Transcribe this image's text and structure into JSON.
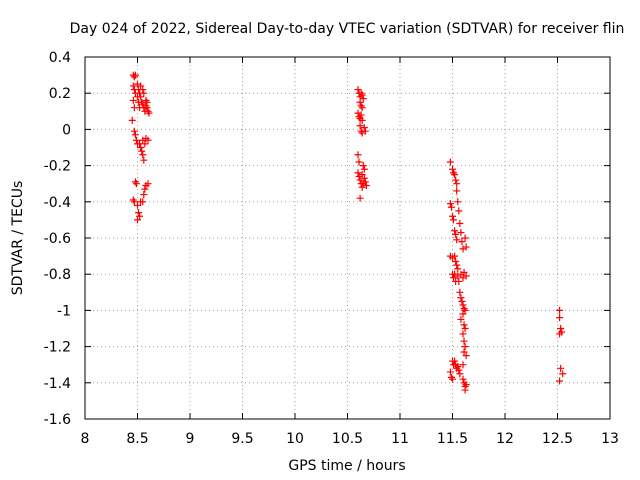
{
  "chart_data": {
    "type": "scatter",
    "title": "Day 024 of 2022, Sidereal Day-to-day VTEC variation (SDTVAR) for receiver flin",
    "xlabel": "GPS time / hours",
    "ylabel": "SDTVAR / TECUs",
    "xlim": [
      8,
      13
    ],
    "ylim": [
      -1.6,
      0.4
    ],
    "xticks": [
      8,
      8.5,
      9,
      9.5,
      10,
      10.5,
      11,
      11.5,
      12,
      12.5,
      13
    ],
    "xtick_labels": [
      "8",
      "8.5",
      "9",
      "9.5",
      "10",
      "10.5",
      "11",
      "11.5",
      "12",
      "12.5",
      "13"
    ],
    "yticks": [
      0.4,
      0.2,
      0,
      -0.2,
      -0.4,
      -0.6,
      -0.8,
      -1,
      -1.2,
      -1.4,
      -1.6
    ],
    "ytick_labels": [
      "0.4",
      "0.2",
      "0",
      "-0.2",
      "-0.4",
      "-0.6",
      "-0.8",
      "-1",
      "-1.2",
      "-1.4",
      "-1.6"
    ],
    "grid": true,
    "marker": "+",
    "marker_color": "#ff0000",
    "series": [
      {
        "name": "SDTVAR",
        "points": [
          [
            8.46,
            0.3
          ],
          [
            8.47,
            0.29
          ],
          [
            8.48,
            0.3
          ],
          [
            8.46,
            0.24
          ],
          [
            8.47,
            0.22
          ],
          [
            8.48,
            0.2
          ],
          [
            8.46,
            0.16
          ],
          [
            8.47,
            0.12
          ],
          [
            8.45,
            0.05
          ],
          [
            8.47,
            -0.01
          ],
          [
            8.48,
            -0.03
          ],
          [
            8.49,
            -0.06
          ],
          [
            8.5,
            -0.08
          ],
          [
            8.48,
            -0.29
          ],
          [
            8.49,
            -0.3
          ],
          [
            8.46,
            -0.39
          ],
          [
            8.47,
            -0.4
          ],
          [
            8.5,
            0.25
          ],
          [
            8.51,
            0.22
          ],
          [
            8.52,
            0.2
          ],
          [
            8.5,
            0.18
          ],
          [
            8.51,
            0.15
          ],
          [
            8.52,
            0.12
          ],
          [
            8.53,
            0.18
          ],
          [
            8.54,
            0.15
          ],
          [
            8.55,
            0.14
          ],
          [
            8.56,
            0.12
          ],
          [
            8.57,
            0.1
          ],
          [
            8.58,
            0.13
          ],
          [
            8.59,
            0.12
          ],
          [
            8.6,
            0.1
          ],
          [
            8.61,
            0.09
          ],
          [
            8.52,
            -0.08
          ],
          [
            8.53,
            -0.1
          ],
          [
            8.54,
            -0.12
          ],
          [
            8.55,
            -0.14
          ],
          [
            8.56,
            -0.17
          ],
          [
            8.55,
            -0.06
          ],
          [
            8.57,
            -0.08
          ],
          [
            8.58,
            -0.05
          ],
          [
            8.6,
            -0.06
          ],
          [
            8.5,
            -0.42
          ],
          [
            8.51,
            -0.46
          ],
          [
            8.52,
            -0.48
          ],
          [
            8.5,
            -0.5
          ],
          [
            8.53,
            -0.4
          ],
          [
            8.55,
            -0.4
          ],
          [
            8.56,
            -0.36
          ],
          [
            8.57,
            -0.33
          ],
          [
            8.58,
            -0.31
          ],
          [
            8.6,
            -0.3
          ],
          [
            8.53,
            0.24
          ],
          [
            8.55,
            0.22
          ],
          [
            8.56,
            0.2
          ],
          [
            8.58,
            0.16
          ],
          [
            8.59,
            0.15
          ],
          [
            10.6,
            0.22
          ],
          [
            10.61,
            0.2
          ],
          [
            10.62,
            0.18
          ],
          [
            10.63,
            0.2
          ],
          [
            10.64,
            0.19
          ],
          [
            10.65,
            0.17
          ],
          [
            10.62,
            0.15
          ],
          [
            10.63,
            0.13
          ],
          [
            10.64,
            0.12
          ],
          [
            10.6,
            0.09
          ],
          [
            10.61,
            0.07
          ],
          [
            10.62,
            0.06
          ],
          [
            10.63,
            0.08
          ],
          [
            10.64,
            0.05
          ],
          [
            10.62,
            0.02
          ],
          [
            10.63,
            -0.01
          ],
          [
            10.64,
            -0.02
          ],
          [
            10.66,
            0.01
          ],
          [
            10.67,
            -0.01
          ],
          [
            10.6,
            -0.14
          ],
          [
            10.61,
            -0.18
          ],
          [
            10.6,
            -0.24
          ],
          [
            10.61,
            -0.26
          ],
          [
            10.62,
            -0.28
          ],
          [
            10.63,
            -0.3
          ],
          [
            10.64,
            -0.32
          ],
          [
            10.62,
            -0.38
          ],
          [
            10.65,
            -0.2
          ],
          [
            10.66,
            -0.22
          ],
          [
            10.66,
            -0.27
          ],
          [
            10.67,
            -0.29
          ],
          [
            10.68,
            -0.31
          ],
          [
            10.64,
            -0.25
          ],
          [
            10.65,
            -0.3
          ],
          [
            11.48,
            -0.18
          ],
          [
            11.5,
            -0.22
          ],
          [
            11.51,
            -0.24
          ],
          [
            11.52,
            -0.25
          ],
          [
            11.53,
            -0.28
          ],
          [
            11.54,
            -0.3
          ],
          [
            11.54,
            -0.34
          ],
          [
            11.48,
            -0.41
          ],
          [
            11.49,
            -0.43
          ],
          [
            11.5,
            -0.48
          ],
          [
            11.51,
            -0.5
          ],
          [
            11.52,
            -0.56
          ],
          [
            11.53,
            -0.58
          ],
          [
            11.54,
            -0.61
          ],
          [
            11.55,
            -0.4
          ],
          [
            11.56,
            -0.45
          ],
          [
            11.57,
            -0.52
          ],
          [
            11.58,
            -0.57
          ],
          [
            11.59,
            -0.62
          ],
          [
            11.6,
            -0.66
          ],
          [
            11.62,
            -0.6
          ],
          [
            11.63,
            -0.65
          ],
          [
            11.48,
            -0.7
          ],
          [
            11.5,
            -0.71
          ],
          [
            11.52,
            -0.7
          ],
          [
            11.53,
            -0.73
          ],
          [
            11.54,
            -0.75
          ],
          [
            11.55,
            -0.77
          ],
          [
            11.5,
            -0.8
          ],
          [
            11.51,
            -0.82
          ],
          [
            11.52,
            -0.8
          ],
          [
            11.53,
            -0.84
          ],
          [
            11.55,
            -0.81
          ],
          [
            11.56,
            -0.84
          ],
          [
            11.58,
            -0.8
          ],
          [
            11.6,
            -0.82
          ],
          [
            11.61,
            -0.79
          ],
          [
            11.63,
            -0.81
          ],
          [
            11.57,
            -0.9
          ],
          [
            11.58,
            -0.93
          ],
          [
            11.59,
            -0.95
          ],
          [
            11.6,
            -0.97
          ],
          [
            11.61,
            -0.99
          ],
          [
            11.62,
            -1.0
          ],
          [
            11.6,
            -1.02
          ],
          [
            11.58,
            -1.05
          ],
          [
            11.61,
            -1.08
          ],
          [
            11.62,
            -1.1
          ],
          [
            11.6,
            -1.13
          ],
          [
            11.61,
            -1.17
          ],
          [
            11.62,
            -1.2
          ],
          [
            11.61,
            -1.23
          ],
          [
            11.63,
            -1.25
          ],
          [
            11.5,
            -1.28
          ],
          [
            11.51,
            -1.3
          ],
          [
            11.52,
            -1.28
          ],
          [
            11.53,
            -1.3
          ],
          [
            11.54,
            -1.32
          ],
          [
            11.55,
            -1.31
          ],
          [
            11.56,
            -1.33
          ],
          [
            11.57,
            -1.35
          ],
          [
            11.48,
            -1.34
          ],
          [
            11.49,
            -1.37
          ],
          [
            11.5,
            -1.38
          ],
          [
            11.6,
            -1.38
          ],
          [
            11.61,
            -1.4
          ],
          [
            11.62,
            -1.42
          ],
          [
            11.63,
            -1.41
          ],
          [
            11.62,
            -1.44
          ],
          [
            11.6,
            -1.3
          ],
          [
            12.52,
            -1.0
          ],
          [
            12.52,
            -1.04
          ],
          [
            12.53,
            -1.1
          ],
          [
            12.54,
            -1.12
          ],
          [
            12.52,
            -1.13
          ],
          [
            12.53,
            -1.32
          ],
          [
            12.55,
            -1.35
          ],
          [
            12.52,
            -1.39
          ]
        ]
      }
    ]
  }
}
